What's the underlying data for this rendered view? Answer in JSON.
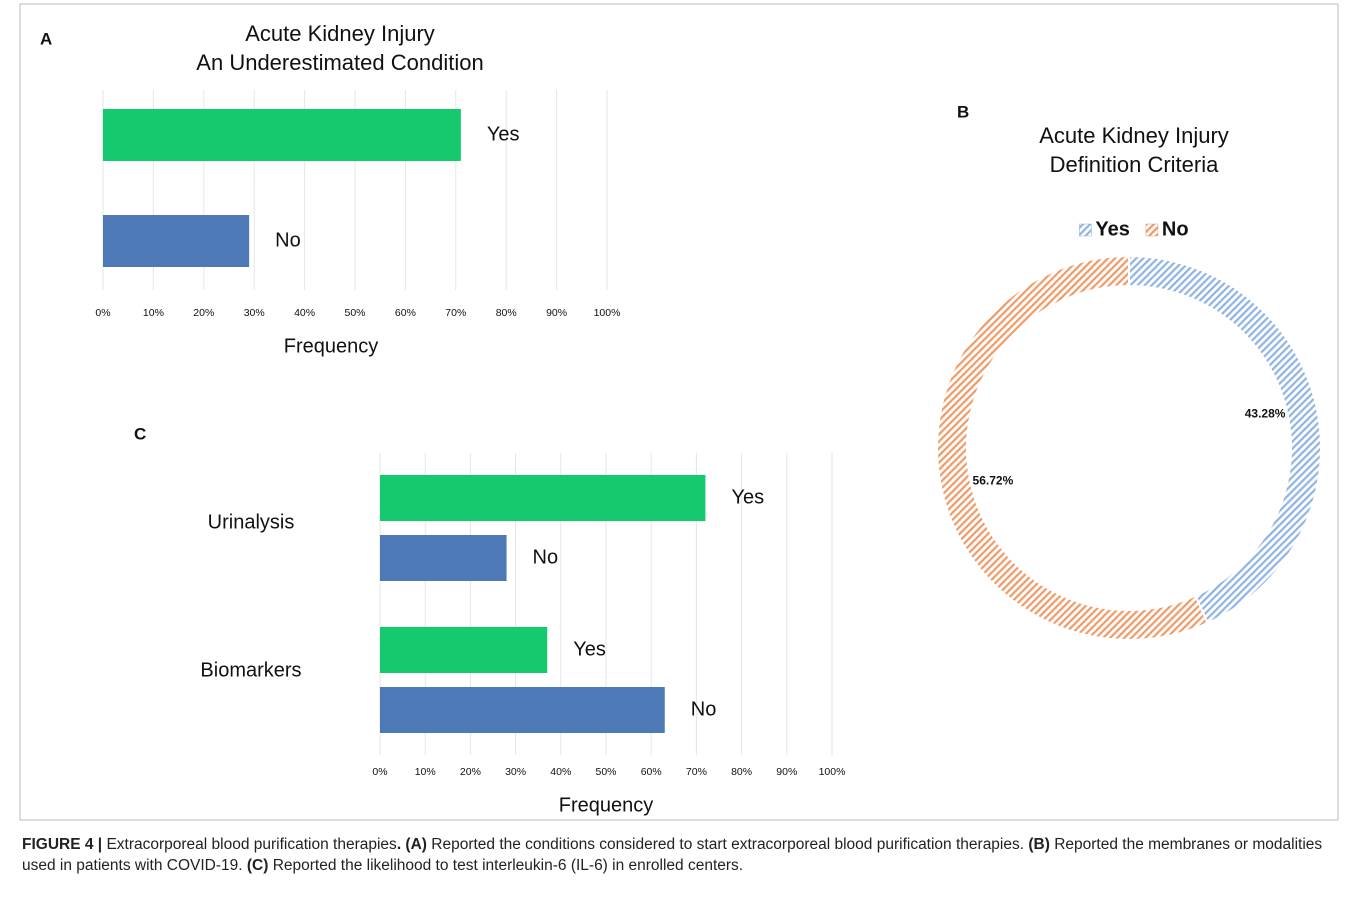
{
  "chart_data": [
    {
      "panel": "A",
      "type": "bar",
      "title": [
        "Acute Kidney Injury",
        "An Underestimated Condition"
      ],
      "categories": [
        "Yes",
        "No"
      ],
      "values": [
        71,
        29
      ],
      "colors": [
        "#14c96e",
        "#4e79b7"
      ],
      "xlabel": "Frequency",
      "xlim": [
        0,
        100
      ],
      "xticks": [
        {
          "value": 0,
          "label": "0%"
        },
        {
          "value": 10,
          "label": "10%"
        },
        {
          "value": 20,
          "label": "20%"
        },
        {
          "value": 30,
          "label": "30%"
        },
        {
          "value": 40,
          "label": "40%"
        },
        {
          "value": 50,
          "label": "50%"
        },
        {
          "value": 60,
          "label": "60%"
        },
        {
          "value": 70,
          "label": "70%"
        },
        {
          "value": 80,
          "label": "80%"
        },
        {
          "value": 90,
          "label": "90%"
        },
        {
          "value": 100,
          "label": "100%"
        }
      ],
      "grid": true
    },
    {
      "panel": "B",
      "type": "pie",
      "title": [
        "Acute Kidney Injury",
        "Definition Criteria"
      ],
      "categories": [
        "Yes",
        "No"
      ],
      "values": [
        43.28,
        56.72
      ],
      "value_labels": [
        "43.28%",
        "56.72%"
      ],
      "colors": [
        "#8fb4e3",
        "#f09a67"
      ],
      "legend": "top",
      "hatch": true,
      "donut": true
    },
    {
      "panel": "C",
      "type": "bar",
      "categories": [
        "Urinalysis",
        "Biomarkers"
      ],
      "series": [
        {
          "name": "Yes",
          "color": "#14c96e",
          "values": [
            72,
            37
          ]
        },
        {
          "name": "No",
          "color": "#4e79b7",
          "values": [
            28,
            63
          ]
        }
      ],
      "xlabel": "Frequency",
      "xlim": [
        0,
        100
      ],
      "xticks": [
        {
          "value": 0,
          "label": "0%"
        },
        {
          "value": 10,
          "label": "10%"
        },
        {
          "value": 20,
          "label": "20%"
        },
        {
          "value": 30,
          "label": "30%"
        },
        {
          "value": 40,
          "label": "40%"
        },
        {
          "value": 50,
          "label": "50%"
        },
        {
          "value": 60,
          "label": "60%"
        },
        {
          "value": 70,
          "label": "70%"
        },
        {
          "value": 80,
          "label": "80%"
        },
        {
          "value": 90,
          "label": "90%"
        },
        {
          "value": 100,
          "label": "100%"
        }
      ],
      "grid": true
    }
  ],
  "caption": [
    {
      "text": "FIGURE 4 |",
      "bold": true
    },
    {
      "text": " Extracorporeal blood purification therapies"
    },
    {
      "text": ".",
      "bold": true
    },
    {
      "text": " (A)",
      "bold": true
    },
    {
      "text": " Reported the conditions considered to start extracorporeal blood purification therapies."
    },
    {
      "text": " (B)",
      "bold": true
    },
    {
      "text": " Reported the membranes or modalities used in patients with COVID-19."
    },
    {
      "text": " (C)",
      "bold": true
    },
    {
      "text": " Reported the likelihood to test interleukin-6 (IL-6) in enrolled centers."
    }
  ]
}
